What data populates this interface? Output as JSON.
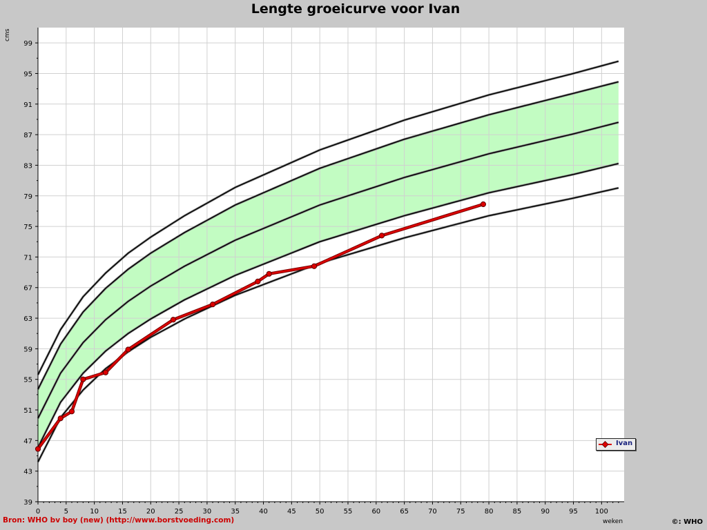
{
  "chart_data": {
    "type": "line",
    "title": "Lengte groeicurve voor Ivan",
    "xlabel": "weken",
    "ylabel": "cms",
    "xlim": [
      0,
      104
    ],
    "ylim": [
      39,
      101
    ],
    "x_ticks": [
      0,
      5,
      10,
      15,
      20,
      25,
      30,
      35,
      40,
      45,
      50,
      55,
      60,
      65,
      70,
      75,
      80,
      85,
      90,
      95,
      100
    ],
    "y_ticks": [
      39,
      43,
      47,
      51,
      55,
      59,
      63,
      67,
      71,
      75,
      79,
      83,
      87,
      91,
      95,
      99
    ],
    "grid": true,
    "band_color": "#c2fcc2",
    "reference_curves": [
      {
        "x": [
          0,
          4,
          8,
          12,
          16,
          20,
          26,
          35,
          50,
          65,
          80,
          95,
          104
        ],
        "values": [
          44.2,
          50.0,
          53.6,
          56.4,
          58.6,
          60.5,
          62.9,
          66.0,
          70.2,
          73.5,
          76.4,
          78.7,
          80.2
        ]
      },
      {
        "x": [
          0,
          4,
          8,
          12,
          16,
          20,
          26,
          35,
          50,
          65,
          80,
          95,
          104
        ],
        "values": [
          46.1,
          52.0,
          55.8,
          58.7,
          61.0,
          62.9,
          65.4,
          68.6,
          73.0,
          76.4,
          79.4,
          81.8,
          83.4
        ]
      },
      {
        "x": [
          0,
          4,
          8,
          12,
          16,
          20,
          26,
          35,
          50,
          65,
          80,
          95,
          104
        ],
        "values": [
          49.9,
          55.8,
          59.8,
          62.8,
          65.2,
          67.2,
          69.8,
          73.2,
          77.8,
          81.4,
          84.5,
          87.1,
          88.8
        ]
      },
      {
        "x": [
          0,
          4,
          8,
          12,
          16,
          20,
          26,
          35,
          50,
          65,
          80,
          95,
          104
        ],
        "values": [
          53.7,
          59.6,
          63.8,
          66.9,
          69.4,
          71.5,
          74.2,
          77.8,
          82.6,
          86.4,
          89.6,
          92.4,
          94.1
        ]
      },
      {
        "x": [
          0,
          4,
          8,
          12,
          16,
          20,
          26,
          35,
          50,
          65,
          80,
          95,
          104
        ],
        "values": [
          55.6,
          61.5,
          65.8,
          68.9,
          71.5,
          73.6,
          76.4,
          80.1,
          85.0,
          88.9,
          92.2,
          95.0,
          96.8
        ]
      }
    ],
    "series": [
      {
        "name": "Ivan",
        "color": "#dd0000",
        "x": [
          0,
          4,
          6,
          8,
          12,
          16,
          24,
          31,
          39,
          41,
          49,
          61,
          79
        ],
        "values": [
          45.9,
          49.9,
          50.8,
          55.0,
          55.9,
          58.9,
          62.8,
          64.8,
          67.8,
          68.8,
          69.8,
          73.8,
          77.9
        ]
      }
    ],
    "legend": {
      "position": "right",
      "label": "Ivan"
    }
  },
  "footer": {
    "source": "Bron: WHO bv boy (new) (http://www.borstvoeding.com)",
    "copyright": "©: WHO"
  }
}
